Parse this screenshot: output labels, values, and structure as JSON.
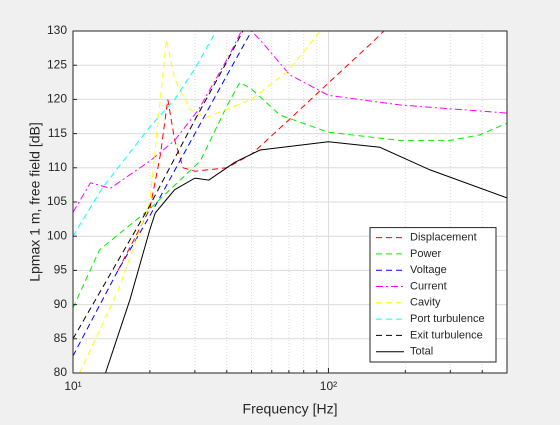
{
  "chart_data": {
    "type": "line",
    "xlabel": "Frequency [Hz]",
    "ylabel": "Lpmax 1 m, free field [dB]",
    "xscale": "log",
    "grid": true,
    "legend_position": "lower right",
    "xlim": [
      10,
      500
    ],
    "ylim": [
      80,
      130
    ],
    "xticks": [
      {
        "value": 10,
        "label": "10¹"
      },
      {
        "value": 100,
        "label": "10²"
      }
    ],
    "xminor_ticks": [
      20,
      30,
      40,
      50,
      60,
      70,
      80,
      90,
      200,
      300,
      400,
      500
    ],
    "yticks": [
      80,
      85,
      90,
      95,
      100,
      105,
      110,
      115,
      120,
      125,
      130
    ],
    "series": [
      {
        "name": "Displacement",
        "color": "#ff0000",
        "style": "dashed",
        "x": [
          15,
          20,
          22,
          23.5,
          25,
          27,
          30,
          40,
          50,
          70,
          100,
          150,
          170
        ],
        "values": [
          95,
          104,
          112,
          120,
          114,
          110,
          109.5,
          110,
          112,
          117,
          122.4,
          128.5,
          130.5
        ]
      },
      {
        "name": "Power",
        "color": "#00ee00",
        "style": "dashed",
        "x": [
          10,
          12.7,
          20,
          31.5,
          40,
          45,
          50,
          64.6,
          100,
          190,
          300,
          390,
          500
        ],
        "values": [
          89.5,
          98,
          104,
          111,
          119,
          122.5,
          121.5,
          117.7,
          115.2,
          114,
          114,
          114.8,
          116.5
        ]
      },
      {
        "name": "Voltage",
        "color": "#0000ff",
        "style": "dashed",
        "x": [
          10,
          15,
          20,
          30,
          40,
          50
        ],
        "values": [
          82.5,
          95,
          103,
          115,
          123.5,
          130
        ]
      },
      {
        "name": "Current",
        "color": "#ff00ff",
        "style": "dashdot",
        "x": [
          10,
          11.7,
          14,
          20,
          25,
          31,
          41,
          47,
          54,
          70.5,
          100,
          190,
          500
        ],
        "values": [
          103.5,
          107.8,
          107,
          111,
          114,
          118.5,
          126.5,
          131,
          128.7,
          123.6,
          120.6,
          119.2,
          118
        ]
      },
      {
        "name": "Cavity",
        "color": "#ffff00",
        "style": "dashed",
        "x": [
          10.6,
          15,
          20,
          23.2,
          25,
          28.7,
          32.9,
          50,
          70,
          93
        ],
        "values": [
          80,
          92,
          105,
          128.7,
          123,
          118.5,
          117.3,
          120,
          124.3,
          130
        ]
      },
      {
        "name": "Port turbulence",
        "color": "#00ffff",
        "style": "dashed",
        "x": [
          10,
          13,
          20,
          25,
          30,
          37
        ],
        "values": [
          100,
          107,
          116,
          120,
          124.5,
          130.5
        ]
      },
      {
        "name": "Exit turbulence",
        "color": "#000000",
        "style": "dashed",
        "x": [
          10,
          20,
          30,
          40,
          47
        ],
        "values": [
          85,
          104.5,
          117,
          125.5,
          130.5
        ]
      },
      {
        "name": "Total",
        "color": "#000000",
        "style": "solid",
        "x": [
          13.4,
          16.7,
          20,
          21,
          25,
          30,
          34,
          43,
          54,
          100,
          159,
          250,
          500
        ],
        "values": [
          80,
          90.7,
          101,
          103.4,
          106.8,
          108.5,
          108.2,
          110.8,
          112.6,
          113.8,
          113,
          109.7,
          105.6
        ]
      }
    ]
  }
}
